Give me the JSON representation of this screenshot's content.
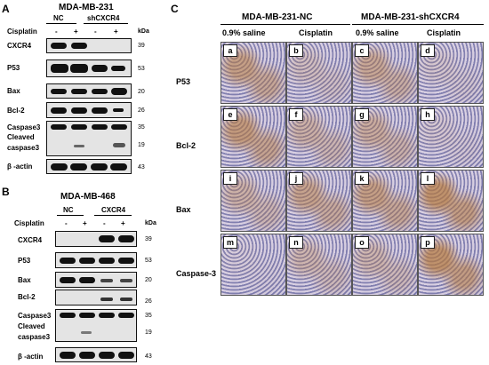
{
  "panelA": {
    "letter": "A",
    "title": "MDA-MB-231",
    "groups": [
      "NC",
      "shCXCR4"
    ],
    "row_label": "Cisplatin",
    "signs": [
      "-",
      "+",
      "-",
      "+"
    ],
    "kda": "kDa",
    "blots": [
      {
        "name": "CXCR4",
        "mw": "39"
      },
      {
        "name": "P53",
        "mw": "53"
      },
      {
        "name": "Bax",
        "mw": "20"
      },
      {
        "name": "Bcl-2",
        "mw": "26"
      },
      {
        "name": "Caspase3",
        "mw": "35"
      },
      {
        "name": "Cleaved",
        "mw": "19"
      },
      {
        "name": "caspase3",
        "mw": ""
      },
      {
        "name": "β -actin",
        "mw": "43"
      }
    ]
  },
  "panelB": {
    "letter": "B",
    "title": "MDA-MB-468",
    "groups": [
      "NC",
      "CXCR4"
    ],
    "row_label": "Cisplatin",
    "signs": [
      "-",
      "+",
      "-",
      "+"
    ],
    "kda": "kDa",
    "blots": [
      {
        "name": "CXCR4",
        "mw": "39"
      },
      {
        "name": "P53",
        "mw": "53"
      },
      {
        "name": "Bax",
        "mw": "20"
      },
      {
        "name": "Bcl-2",
        "mw": "26"
      },
      {
        "name": "Caspase3",
        "mw": "35"
      },
      {
        "name": "Cleaved",
        "mw": "19"
      },
      {
        "name": "caspase3",
        "mw": ""
      },
      {
        "name": "β -actin",
        "mw": "43"
      }
    ]
  },
  "panelC": {
    "letter": "C",
    "groups": [
      "MDA-MB-231-NC",
      "MDA-MB-231-shCXCR4"
    ],
    "columns": [
      "0.9% saline",
      "Cisplatin",
      "0.9% saline",
      "Cisplatin"
    ],
    "rows": [
      "P53",
      "Bcl-2",
      "Bax",
      "Caspase-3"
    ],
    "letters": [
      "a",
      "b",
      "c",
      "d",
      "e",
      "f",
      "g",
      "h",
      "i",
      "j",
      "k",
      "l",
      "m",
      "n",
      "o",
      "p"
    ]
  },
  "colors": {
    "stain_blue": "#5b5fa3",
    "stain_brown": "#b4773a",
    "band": "#111111",
    "blot_bg": "#e4e4e4"
  }
}
